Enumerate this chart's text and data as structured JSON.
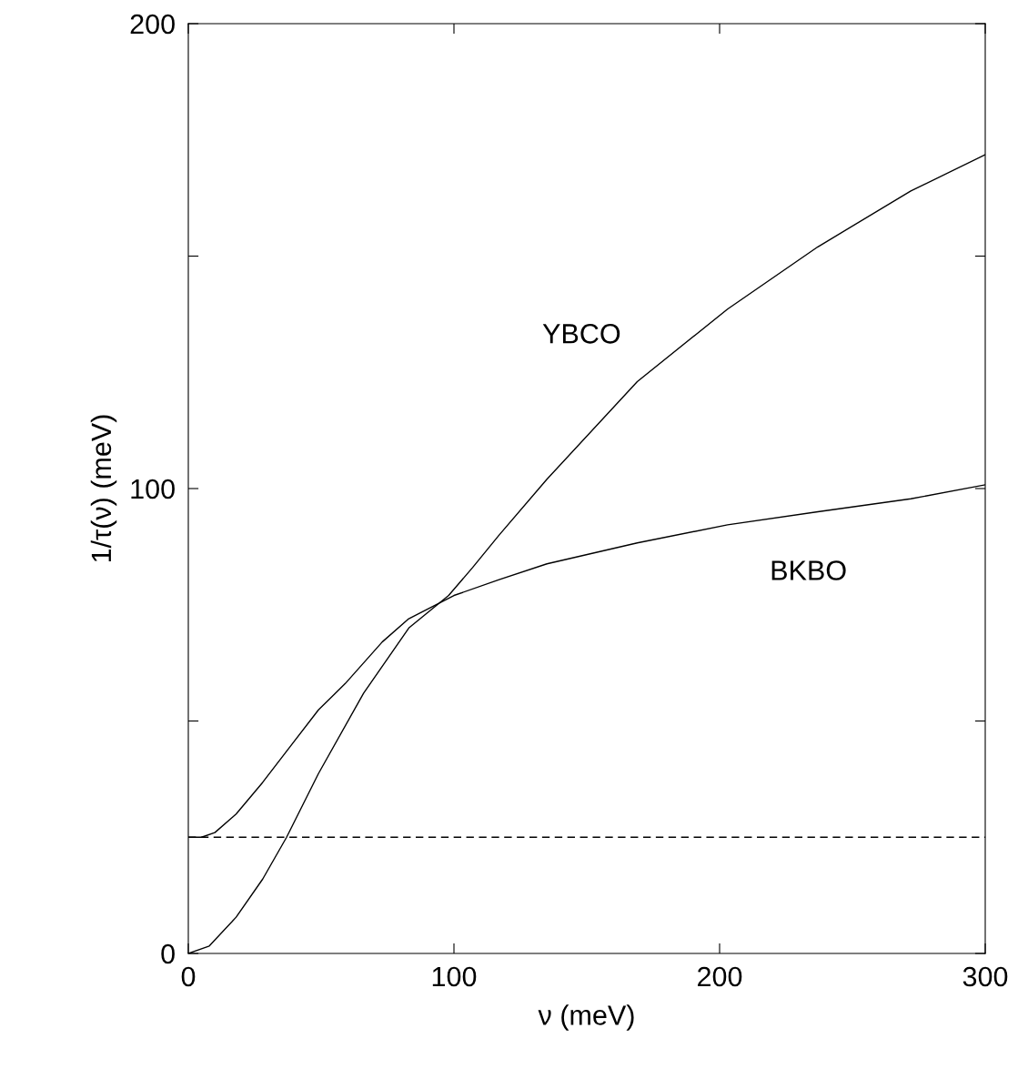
{
  "chart_data": {
    "type": "line",
    "xlabel": "ν (meV)",
    "ylabel": "1/τ(ν) (meV)",
    "xlim": [
      0,
      300
    ],
    "xticks": [
      0,
      100,
      200,
      300
    ],
    "ylim": [
      0,
      200
    ],
    "yticks": [
      0,
      {
        "value": 50,
        "label": null
      },
      100,
      {
        "value": 150,
        "label": null
      },
      200
    ],
    "grid": false,
    "marker": "none",
    "line_style": "solid",
    "series": [
      {
        "name": "YBCO",
        "color": "#000000",
        "x": [
          0,
          7.9,
          18,
          28,
          37,
          49,
          66,
          83,
          98,
          107,
          117,
          135,
          169,
          203,
          237,
          272,
          300
        ],
        "values": [
          0,
          1.6,
          7.8,
          16,
          25,
          38.7,
          56,
          70,
          77,
          83,
          90,
          102,
          123,
          138.6,
          152,
          164,
          171.8
        ]
      },
      {
        "name": "BKBO",
        "color": "#000000",
        "x": [
          0,
          5,
          10,
          18,
          28,
          39,
          49,
          59,
          73,
          83,
          100,
          117,
          135,
          169,
          203,
          237,
          272,
          300
        ],
        "values": [
          25,
          25,
          26,
          30,
          36.8,
          45,
          52.4,
          58,
          67,
          72,
          77,
          80.4,
          83.8,
          88.3,
          92.2,
          95,
          97.8,
          100.8
        ]
      }
    ],
    "ref_lines": [
      {
        "axis": "y",
        "value": 25,
        "color": "#000000",
        "line_style": "dashed"
      }
    ]
  }
}
